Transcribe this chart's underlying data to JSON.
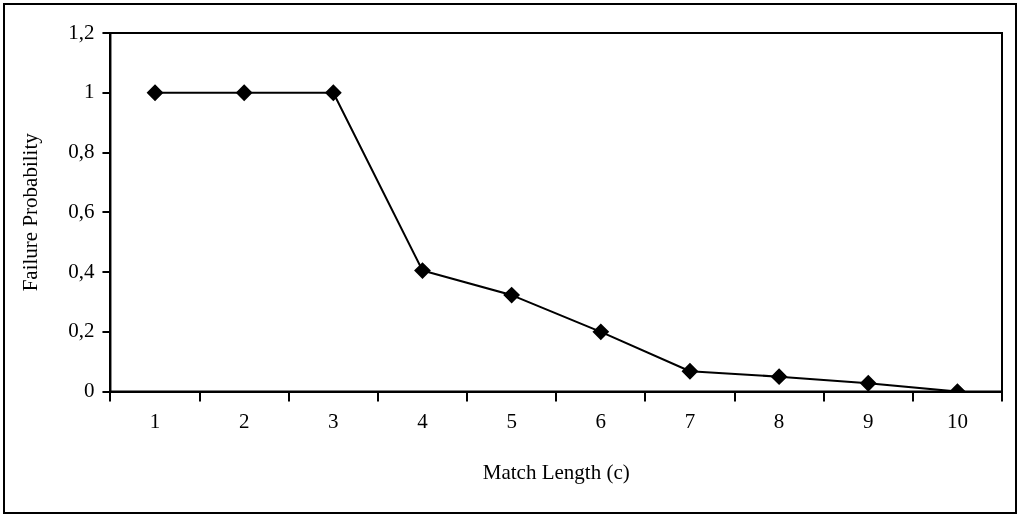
{
  "chart_data": {
    "type": "line",
    "xlabel": "Match Length (c)",
    "ylabel": "Failure Probability",
    "categories": [
      "1",
      "2",
      "3",
      "4",
      "5",
      "6",
      "7",
      "8",
      "9",
      "10"
    ],
    "series": [
      {
        "color": "#000000",
        "values": [
          1,
          1,
          1,
          0.405,
          0.323,
          0.2,
          0.068,
          0.05,
          0.028,
          0
        ]
      }
    ],
    "ylim": [
      0,
      1.2
    ],
    "yticks": [
      0,
      {
        "value": 0.2,
        "label": "0,2"
      },
      {
        "value": 0.4,
        "label": "0,4"
      },
      {
        "value": 0.6,
        "label": "0,6"
      },
      {
        "value": 0.8,
        "label": "0,8"
      },
      1,
      {
        "value": 1.2,
        "label": "1,2"
      }
    ],
    "grid": false,
    "legend": false,
    "marker": "diamond",
    "line_style": "solid"
  }
}
